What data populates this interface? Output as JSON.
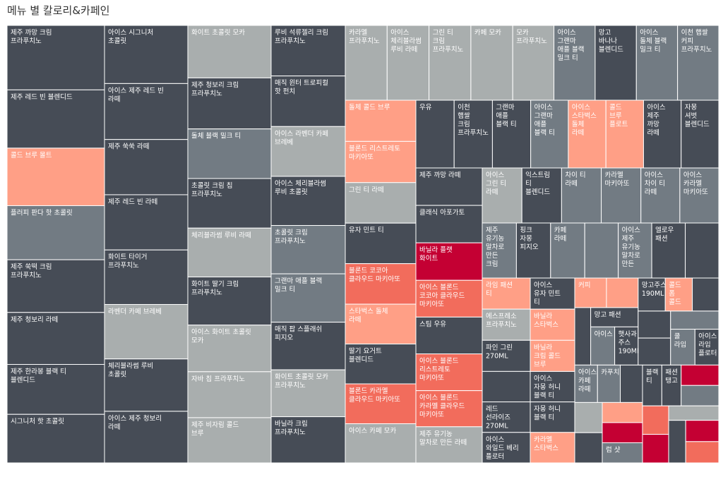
{
  "chart_data": {
    "type": "treemap",
    "title": "메뉴 별 칼로리&카페인",
    "size_measure": "칼로리",
    "color_measure": "카페인",
    "color_scale": {
      "stops": [
        "#a9aeae",
        "#727b83",
        "#464c56",
        "#ff9f86",
        "#f26c5c",
        "#c40033"
      ]
    },
    "columns": [
      {
        "width_share": 138,
        "items": [
          {
            "name": "제주 까망 크림 프라푸치노",
            "weight": 93,
            "color": "#464c56"
          },
          {
            "name": "제주 레드 빈 블렌디드",
            "weight": 84,
            "color": "#464c56"
          },
          {
            "name": "콜드 브루 몰트",
            "weight": 83,
            "color": "#ff9f86"
          },
          {
            "name": "플러피 판다 핫 초콜릿",
            "weight": 78,
            "color": "#727b83"
          },
          {
            "name": "제주 쑥떡 크림 프라푸치노",
            "weight": 76,
            "color": "#464c56"
          },
          {
            "name": "제주 청보리 라떼",
            "weight": 75,
            "color": "#464c56"
          },
          {
            "name": "제주 한라봉 블랙 티 블렌디드",
            "weight": 72,
            "color": "#464c56"
          },
          {
            "name": "시그니처 핫 초콜릿",
            "weight": 70,
            "color": "#464c56"
          }
        ]
      },
      {
        "width_share": 118,
        "items": [
          {
            "name": "아이스 시그니처 초콜릿",
            "weight": 80,
            "color": "#464c56"
          },
          {
            "name": "아이스 제주 레드 빈 라떼",
            "weight": 77,
            "color": "#464c56"
          },
          {
            "name": "제주 쑥쑥 라떼",
            "weight": 76,
            "color": "#464c56"
          },
          {
            "name": "제주 레드 빈 라떼",
            "weight": 76,
            "color": "#464c56"
          },
          {
            "name": "화이트 타이거 프라푸치노",
            "weight": 75,
            "color": "#464c56"
          },
          {
            "name": "라벤더 카페 브레베",
            "weight": 75,
            "color": "#a9aeae"
          },
          {
            "name": "체리블라썸 루비 초콜릿",
            "weight": 72,
            "color": "#464c56"
          },
          {
            "name": "아이스 제주 청보리 라떼",
            "weight": 71,
            "color": "#464c56"
          }
        ]
      },
      {
        "width_share": 118,
        "items": [
          {
            "name": "화이트 초콜릿 모카",
            "weight": 72,
            "color": "#a9aeae"
          },
          {
            "name": "제주 청보리 크림 프라푸치노",
            "weight": 70,
            "color": "#464c56"
          },
          {
            "name": "돌체 블랙 밀크 티",
            "weight": 68,
            "color": "#727b83"
          },
          {
            "name": "초콜릿 크림 칩 프라푸치노",
            "weight": 68,
            "color": "#464c56"
          },
          {
            "name": "체리블라썸 루비 라떼",
            "weight": 67,
            "color": "#a9aeae"
          },
          {
            "name": "화이트 딸기 크림 프라푸치노",
            "weight": 66,
            "color": "#464c56"
          },
          {
            "name": "아이스 화이트 초콜릿 모카",
            "weight": 64,
            "color": "#a9aeae"
          },
          {
            "name": "자바 칩 프라푸치노",
            "weight": 63,
            "color": "#a9aeae"
          },
          {
            "name": "제주 비자림 콜드 브루",
            "weight": 62,
            "color": "#a9aeae"
          }
        ]
      },
      {
        "width_share": 105,
        "items": [
          {
            "name": "루비 석류젤리 크림 프라푸치노",
            "weight": 69,
            "color": "#464c56"
          },
          {
            "name": "매직 윈터 트로피컬 핫 펀치",
            "weight": 69,
            "color": "#464c56"
          },
          {
            "name": "아이스 라벤더 카페 브레베",
            "weight": 68,
            "color": "#a9aeae"
          },
          {
            "name": "아이스 체리블라썸 루비 초콜릿",
            "weight": 67,
            "color": "#464c56"
          },
          {
            "name": "초콜릿 크림 프라푸치노",
            "weight": 66,
            "color": "#727b83"
          },
          {
            "name": "그랜마 애플 블랙 밀크 티",
            "weight": 66,
            "color": "#727b83"
          },
          {
            "name": "매직 팝 스플래쉬 피지오",
            "weight": 65,
            "color": "#464c56"
          },
          {
            "name": "화이트 초콜릿 모카 프라푸치노",
            "weight": 64,
            "color": "#a9aeae"
          },
          {
            "name": "바닐라 크림 프라푸치노",
            "weight": 63,
            "color": "#464c56"
          }
        ]
      }
    ],
    "right_block": {
      "top_row": [
        {
          "name": "카라멜 프라푸치노",
          "weight": 63,
          "color": "#a9aeae"
        },
        {
          "name": "아이스 체리블라썸 루비 라떼",
          "weight": 63,
          "color": "#a9aeae"
        },
        {
          "name": "그린 티 크림 프라푸치노",
          "weight": 63,
          "color": "#a9aeae"
        },
        {
          "name": "카페 모카",
          "weight": 63,
          "color": "#a9aeae"
        },
        {
          "name": "모카 프라푸치노",
          "weight": 62,
          "color": "#a9aeae"
        },
        {
          "name": "아이스 그랜마 애플 블랙 밀크 티",
          "weight": 62,
          "color": "#727b83"
        },
        {
          "name": "망고 바나나 블렌디드",
          "weight": 62,
          "color": "#464c56"
        },
        {
          "name": "아이스 돌체 블랙 밀크 티",
          "weight": 62,
          "color": "#727b83"
        },
        {
          "name": "이천 햅쌀 커피 프라푸치노",
          "weight": 62,
          "color": "#727b83"
        }
      ],
      "col1": [
        {
          "name": "돌체 콜드 브루",
          "weight": 61,
          "color": "#ff9f86"
        },
        {
          "name": "블론드 리스트레토 마키아또",
          "weight": 61,
          "color": "#ff9f86"
        },
        {
          "name": "그린 티 라떼",
          "weight": 60,
          "color": "#a9aeae"
        },
        {
          "name": "유자 민트 티",
          "weight": 60,
          "color": "#464c56"
        },
        {
          "name": "블론드 코코아 클라우드 마키아또",
          "weight": 60,
          "color": "#f26c5c"
        },
        {
          "name": "스타벅스 돌체 라떼",
          "weight": 59,
          "color": "#ff9f86"
        },
        {
          "name": "딸기 요거트 블렌디드",
          "weight": 59,
          "color": "#464c56"
        },
        {
          "name": "블론드 카라멜 클라우드 마키아또",
          "weight": 59,
          "color": "#f26c5c"
        },
        {
          "name": "아이스 카페 모카",
          "weight": 58,
          "color": "#a9aeae"
        }
      ],
      "mid_top_row": [
        {
          "name": "우유",
          "weight": 58,
          "color": "#464c56"
        },
        {
          "name": "이천 햅쌀 크림 프라푸치노",
          "weight": 58,
          "color": "#464c56"
        },
        {
          "name": "그랜마 애플 블랙 티",
          "weight": 58,
          "color": "#464c56"
        },
        {
          "name": "아이스 그랜마 애플 블랙 티",
          "weight": 57,
          "color": "#727b83"
        },
        {
          "name": "아이스 스타벅스 돌체 라떼",
          "weight": 57,
          "color": "#ff9f86"
        },
        {
          "name": "콜드 브루 플로트",
          "weight": 57,
          "color": "#ff9f86"
        },
        {
          "name": "아이스 제주 까망 라떼",
          "weight": 57,
          "color": "#464c56"
        },
        {
          "name": "자몽 셔벗 블렌디드",
          "weight": 57,
          "color": "#464c56"
        }
      ],
      "col2": [
        {
          "name": "제주 까망 라떼",
          "weight": 56,
          "color": "#464c56"
        },
        {
          "name": "클래식 아포가토",
          "weight": 56,
          "color": "#464c56"
        },
        {
          "name": "바닐라 플랫 화이트",
          "weight": 56,
          "color": "#c40033"
        },
        {
          "name": "아이스 블론드 코코아 클라우드 마키아또",
          "weight": 55,
          "color": "#f26c5c"
        },
        {
          "name": "스팀 우유",
          "weight": 55,
          "color": "#464c56"
        },
        {
          "name": "아이스 블론드 리스트레토 마키아또",
          "weight": 55,
          "color": "#f26c5c"
        },
        {
          "name": "아이스 블론드 카라멜 클라우드 마키아또",
          "weight": 54,
          "color": "#f26c5c"
        },
        {
          "name": "제주 유기농 말차로 만든 라떼",
          "weight": 54,
          "color": "#a9aeae"
        }
      ],
      "row2": [
        {
          "name": "아이스 그린 티 라떼",
          "weight": 53,
          "color": "#a9aeae"
        },
        {
          "name": "익스트림 티 블렌디드",
          "weight": 53,
          "color": "#464c56"
        },
        {
          "name": "차이 티 라떼",
          "weight": 53,
          "color": "#727b83"
        },
        {
          "name": "카라멜 마키아또",
          "weight": 53,
          "color": "#727b83"
        },
        {
          "name": "아이스 차이 티 라떼",
          "weight": 52,
          "color": "#727b83"
        },
        {
          "name": "아이스 카라멜 마키아또",
          "weight": 52,
          "color": "#727b83"
        }
      ],
      "row3": [
        {
          "name": "제주 유기농 말차로 만든 크림",
          "weight": 51,
          "color": "#727b83"
        },
        {
          "name": "핑크 자몽 피지오",
          "weight": 51,
          "color": "#464c56"
        },
        {
          "name": "카페 라떼",
          "weight": 51,
          "color": "#727b83"
        },
        {
          "name": "",
          "weight": 50,
          "color": "#727b83"
        },
        {
          "name": "아이스 제주 유기농 말차로 만든",
          "weight": 50,
          "color": "#727b83"
        },
        {
          "name": "엘로우 패션",
          "weight": 50,
          "color": "#464c56"
        },
        {
          "name": "",
          "weight": 50,
          "color": "#464c56"
        }
      ],
      "col3": [
        {
          "name": "라임 패션 티",
          "weight": 48,
          "color": "#ff9f86"
        },
        {
          "name": "에스프레소 프라푸치노",
          "weight": 48,
          "color": "#a9aeae"
        },
        {
          "name": "파인 그린 270ML",
          "weight": 48,
          "color": "#464c56"
        },
        {
          "name": "",
          "weight": 47,
          "color": "#464c56"
        },
        {
          "name": "레드 선라이즈 270ML",
          "weight": 47,
          "color": "#464c56"
        },
        {
          "name": "아이스 와일드 베리 플로터",
          "weight": 47,
          "color": "#464c56"
        }
      ],
      "col4": [
        {
          "name": "아이스 유자 민트 티",
          "weight": 46,
          "color": "#464c56"
        },
        {
          "name": "바닐라 스타벅스",
          "weight": 46,
          "color": "#ff9f86"
        },
        {
          "name": "바닐라 크림 콜드 브루",
          "weight": 46,
          "color": "#ff9f86"
        },
        {
          "name": "아이스 자몽 허니 블랙 티",
          "weight": 45,
          "color": "#464c56"
        },
        {
          "name": "자몽 허니 블랙 티",
          "weight": 45,
          "color": "#464c56"
        },
        {
          "name": "카라멜 스타벅스",
          "weight": 45,
          "color": "#ff9f86"
        }
      ],
      "smalls": [
        {
          "name": "커피",
          "weight": 44,
          "color": "#ff9f86"
        },
        {
          "name": "",
          "weight": 44,
          "color": "#ff9f86"
        },
        {
          "name": "",
          "weight": 43,
          "color": "#464c56"
        },
        {
          "name": "망고 패션 후르츠",
          "weight": 43,
          "color": "#464c56"
        },
        {
          "name": "아이스",
          "weight": 43,
          "color": "#727b83"
        },
        {
          "name": "햇사과 주스 190ML",
          "weight": 42,
          "color": "#464c56"
        },
        {
          "name": "망고주스 190ML",
          "weight": 42,
          "color": "#464c56"
        },
        {
          "name": "콜드 폼 콜드 브루",
          "weight": 42,
          "color": "#ff9f86"
        },
        {
          "name": "",
          "weight": 41,
          "color": "#464c56"
        },
        {
          "name": "",
          "weight": 41,
          "color": "#464c56"
        },
        {
          "name": "",
          "weight": 41,
          "color": "#464c56"
        },
        {
          "name": "",
          "weight": 41,
          "color": "#727b83"
        },
        {
          "name": "쿨 라임",
          "weight": 41,
          "color": "#727b83"
        },
        {
          "name": "아이스 라임 플로터",
          "weight": 40,
          "color": "#464c56"
        },
        {
          "name": "아이스 카페 라떼",
          "weight": 40,
          "color": "#727b83"
        },
        {
          "name": "카푸치노",
          "weight": 40,
          "color": "#727b83"
        },
        {
          "name": "",
          "weight": 39,
          "color": "#464c56"
        },
        {
          "name": "",
          "weight": 39,
          "color": "#a9aeae"
        },
        {
          "name": "",
          "weight": 39,
          "color": "#464c56"
        },
        {
          "name": "",
          "weight": 38,
          "color": "#ff9f86"
        },
        {
          "name": "",
          "weight": 38,
          "color": "#c40033"
        },
        {
          "name": "럼 샷",
          "weight": 38,
          "color": "#727b83"
        },
        {
          "name": "블랙 티",
          "weight": 37,
          "color": "#464c56"
        },
        {
          "name": "패션 탱고",
          "weight": 37,
          "color": "#464c56"
        },
        {
          "name": "",
          "weight": 36,
          "color": "#c40033"
        },
        {
          "name": "",
          "weight": 36,
          "color": "#727b83"
        },
        {
          "name": "",
          "weight": 35,
          "color": "#f26c5c"
        },
        {
          "name": "",
          "weight": 35,
          "color": "#c40033"
        },
        {
          "name": "",
          "weight": 34,
          "color": "#a9aeae"
        },
        {
          "name": "",
          "weight": 34,
          "color": "#464c56"
        },
        {
          "name": "",
          "weight": 33,
          "color": "#c40033"
        },
        {
          "name": "",
          "weight": 33,
          "color": "#f26c5c"
        }
      ]
    }
  }
}
